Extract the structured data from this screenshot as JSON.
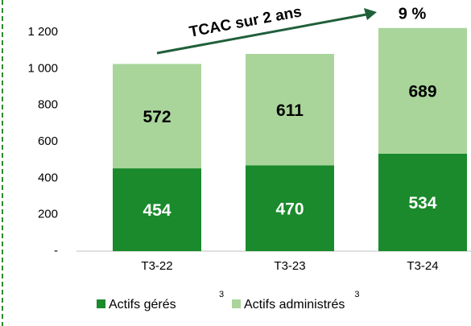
{
  "chart_data": {
    "type": "stacked_bar",
    "categories": [
      "T3-22",
      "T3-23",
      "T3-24"
    ],
    "series": [
      {
        "name": "Actifs gérés",
        "note": "3",
        "color": "#1b8a2c",
        "label_color": "#ffffff",
        "values": [
          454,
          470,
          534
        ]
      },
      {
        "name": "Actifs administrés",
        "note": "3",
        "color": "#a9d59b",
        "label_color": "#000000",
        "values": [
          572,
          611,
          689
        ]
      }
    ],
    "ylim": [
      0,
      1200
    ],
    "yticks": [
      {
        "value": 0,
        "label": "-"
      },
      200,
      400,
      600,
      800,
      {
        "value": 1000,
        "label": "1 000"
      },
      {
        "value": 1200,
        "label": "1 200"
      }
    ],
    "annotation": "TCAC sur 2 ans",
    "growth_label": "9 %"
  }
}
